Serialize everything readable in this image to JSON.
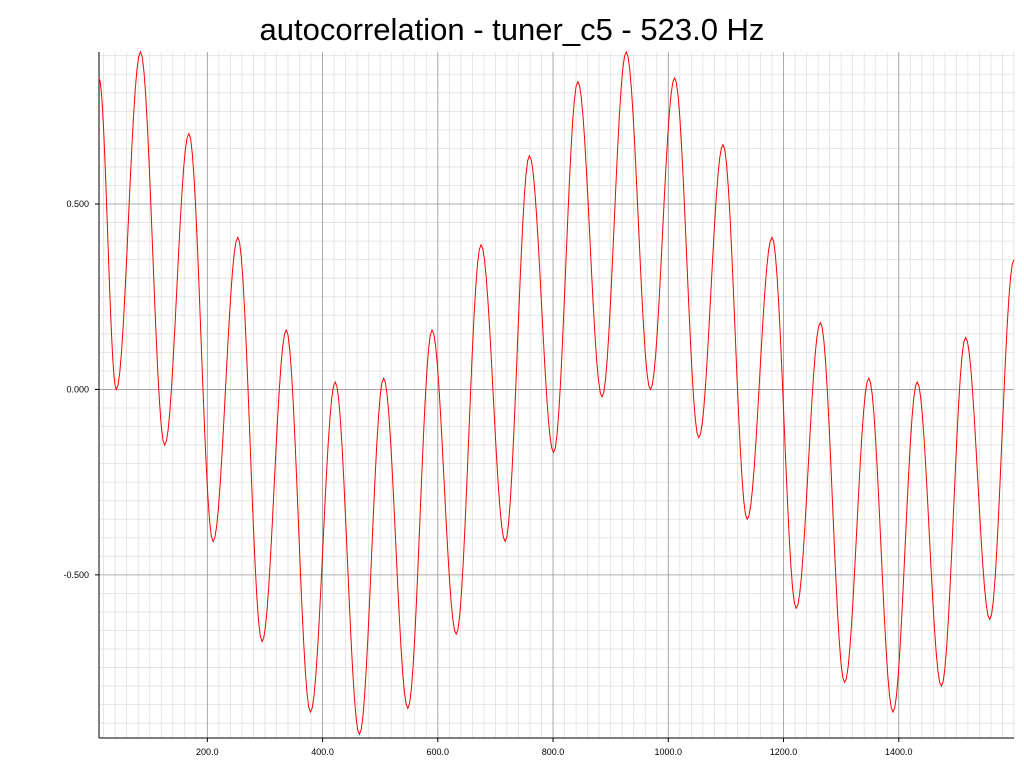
{
  "chart_data": {
    "type": "line",
    "title": "autocorrelation - tuner_c5 - 523.0 Hz",
    "xlabel": "",
    "ylabel": "",
    "xlim": [
      12,
      1600
    ],
    "ylim": [
      -0.94,
      0.91
    ],
    "grid": true,
    "legend": "none",
    "x_ticks": [
      200,
      400,
      600,
      800,
      1000,
      1200,
      1400
    ],
    "x_tick_labels": [
      "200.0",
      "400.0",
      "600.0",
      "800.0",
      "1000.0",
      "1200.0",
      "1400.0"
    ],
    "y_ticks": [
      -0.5,
      0,
      0.5
    ],
    "y_tick_labels": [
      "-0.500",
      "0.000",
      "0.500"
    ],
    "series": [
      {
        "color": "#ff0000",
        "extrema": [
          [
            12,
            0.84
          ],
          [
            42,
            0.0
          ],
          [
            84,
            0.91
          ],
          [
            126,
            -0.15
          ],
          [
            168,
            0.69
          ],
          [
            210,
            -0.41
          ],
          [
            253,
            0.41
          ],
          [
            295,
            -0.68
          ],
          [
            337,
            0.16
          ],
          [
            379,
            -0.87
          ],
          [
            422,
            0.02
          ],
          [
            464,
            -0.93
          ],
          [
            506,
            0.03
          ],
          [
            548,
            -0.86
          ],
          [
            590,
            0.16
          ],
          [
            632,
            -0.66
          ],
          [
            675,
            0.39
          ],
          [
            717,
            -0.41
          ],
          [
            759,
            0.63
          ],
          [
            801,
            -0.17
          ],
          [
            843,
            0.83
          ],
          [
            885,
            -0.02
          ],
          [
            927,
            0.91
          ],
          [
            969,
            0.0
          ],
          [
            1011,
            0.84
          ],
          [
            1053,
            -0.13
          ],
          [
            1095,
            0.66
          ],
          [
            1137,
            -0.35
          ],
          [
            1180,
            0.41
          ],
          [
            1222,
            -0.59
          ],
          [
            1264,
            0.18
          ],
          [
            1306,
            -0.79
          ],
          [
            1348,
            0.03
          ],
          [
            1390,
            -0.87
          ],
          [
            1432,
            0.02
          ],
          [
            1474,
            -0.8
          ],
          [
            1516,
            0.14
          ],
          [
            1558,
            -0.62
          ],
          [
            1600,
            0.35
          ]
        ]
      }
    ]
  },
  "colors": {
    "line": "#ff0000",
    "grid_major": "#9a9a9a",
    "grid_minor": "#e0e0e0",
    "axis": "#000000"
  }
}
